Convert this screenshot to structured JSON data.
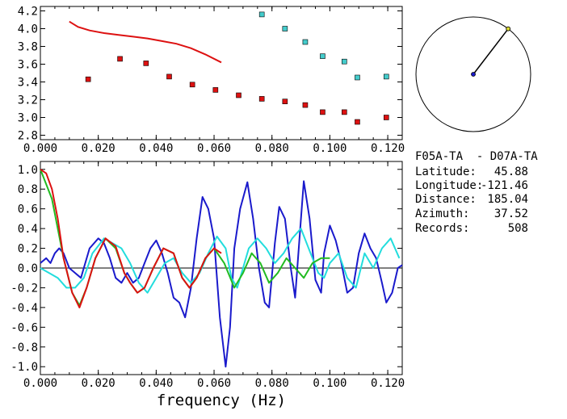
{
  "chart_data": [
    {
      "type": "scatter",
      "name": "dispersion",
      "xlim": [
        0.0,
        0.125
      ],
      "ylim": [
        2.75,
        4.25
      ],
      "x_ticks": [
        0.0,
        0.02,
        0.04,
        0.06,
        0.08,
        0.1,
        0.12
      ],
      "x_tick_labels": [
        "0.000",
        "0.020",
        "0.040",
        "0.060",
        "0.080",
        "0.100",
        "0.120"
      ],
      "y_ticks": [
        2.8,
        3.0,
        3.2,
        3.4,
        3.6,
        3.8,
        4.0,
        4.2
      ],
      "y_tick_labels": [
        "2.8",
        "3.0",
        "3.2",
        "3.4",
        "3.6",
        "3.8",
        "4.0",
        "4.2"
      ],
      "series": [
        {
          "kind": "line",
          "color": "#dd1111",
          "x": [
            0.01,
            0.013,
            0.017,
            0.022,
            0.027,
            0.032,
            0.037,
            0.042,
            0.047,
            0.052,
            0.057,
            0.0625
          ],
          "y": [
            4.08,
            4.02,
            3.98,
            3.95,
            3.93,
            3.91,
            3.89,
            3.86,
            3.83,
            3.78,
            3.71,
            3.62
          ]
        },
        {
          "kind": "markers",
          "color": "#dd1111",
          "x": [
            0.0165,
            0.0275,
            0.0365,
            0.0445,
            0.0525,
            0.0605,
            0.0685,
            0.0765,
            0.0845,
            0.0915,
            0.0975,
            0.105,
            0.1095,
            0.1195
          ],
          "y": [
            3.43,
            3.66,
            3.61,
            3.46,
            3.37,
            3.31,
            3.25,
            3.21,
            3.18,
            3.14,
            3.06,
            3.06,
            2.95,
            3.0
          ]
        },
        {
          "kind": "markers",
          "color": "#44cccc",
          "x": [
            0.0765,
            0.0845,
            0.0915,
            0.0975,
            0.105,
            0.1095,
            0.1195
          ],
          "y": [
            4.16,
            4.0,
            3.85,
            3.69,
            3.63,
            3.45,
            3.46
          ]
        }
      ]
    },
    {
      "type": "line",
      "name": "correlation",
      "xlim": [
        0.0,
        0.125
      ],
      "ylim": [
        -1.08,
        1.08
      ],
      "xlabel": "frequency (Hz)",
      "x_ticks": [
        0.0,
        0.02,
        0.04,
        0.06,
        0.08,
        0.1,
        0.12
      ],
      "x_tick_labels": [
        "0.000",
        "0.020",
        "0.040",
        "0.060",
        "0.080",
        "0.100",
        "0.120"
      ],
      "y_ticks": [
        1.0,
        0.8,
        0.6,
        0.4,
        0.2,
        0.0,
        -0.2,
        -0.4,
        -0.6,
        -0.8,
        -1.0
      ],
      "y_tick_labels": [
        "1.0",
        "0.8",
        "0.6",
        "0.4",
        "0.2",
        "0.0",
        "-0.2",
        "-0.4",
        "-0.6",
        "-0.8",
        "-1.0"
      ],
      "zero_line": true,
      "series": [
        {
          "color": "#1a1acc",
          "x": [
            0.0,
            0.002,
            0.0035,
            0.005,
            0.0065,
            0.008,
            0.01,
            0.012,
            0.014,
            0.017,
            0.02,
            0.022,
            0.024,
            0.026,
            0.028,
            0.03,
            0.032,
            0.034,
            0.036,
            0.038,
            0.04,
            0.042,
            0.044,
            0.046,
            0.048,
            0.05,
            0.052,
            0.054,
            0.056,
            0.058,
            0.06,
            0.062,
            0.064,
            0.0655,
            0.067,
            0.069,
            0.0715,
            0.0735,
            0.0755,
            0.0775,
            0.079,
            0.081,
            0.0825,
            0.0845,
            0.0865,
            0.088,
            0.0895,
            0.091,
            0.093,
            0.095,
            0.097,
            0.098,
            0.1,
            0.102,
            0.104,
            0.106,
            0.108,
            0.11,
            0.112,
            0.114,
            0.116,
            0.118,
            0.1195,
            0.1215,
            0.1235,
            0.125
          ],
          "y": [
            0.05,
            0.1,
            0.05,
            0.15,
            0.2,
            0.15,
            0.0,
            -0.05,
            -0.1,
            0.2,
            0.3,
            0.25,
            0.1,
            -0.1,
            -0.15,
            -0.05,
            -0.15,
            -0.1,
            0.05,
            0.2,
            0.28,
            0.15,
            -0.05,
            -0.3,
            -0.35,
            -0.5,
            -0.2,
            0.3,
            0.72,
            0.6,
            0.3,
            -0.5,
            -1.0,
            -0.6,
            0.2,
            0.6,
            0.87,
            0.5,
            0.0,
            -0.35,
            -0.4,
            0.25,
            0.62,
            0.5,
            0.0,
            -0.3,
            0.3,
            0.88,
            0.5,
            -0.12,
            -0.25,
            0.15,
            0.43,
            0.28,
            0.05,
            -0.25,
            -0.2,
            0.15,
            0.35,
            0.2,
            0.1,
            -0.15,
            -0.35,
            -0.25,
            0.0,
            0.03
          ]
        },
        {
          "color": "#22dddd",
          "x": [
            0.0,
            0.003,
            0.006,
            0.009,
            0.012,
            0.015,
            0.018,
            0.022,
            0.025,
            0.028,
            0.031,
            0.034,
            0.037,
            0.04,
            0.043,
            0.046,
            0.049,
            0.052,
            0.055,
            0.058,
            0.061,
            0.064,
            0.066,
            0.068,
            0.07,
            0.072,
            0.075,
            0.078,
            0.081,
            0.084,
            0.087,
            0.09,
            0.092,
            0.094,
            0.096,
            0.098,
            0.1,
            0.103,
            0.106,
            0.109,
            0.112,
            0.115,
            0.118,
            0.121,
            0.124
          ],
          "y": [
            0.0,
            -0.05,
            -0.1,
            -0.2,
            -0.2,
            -0.1,
            0.15,
            0.3,
            0.25,
            0.2,
            0.05,
            -0.15,
            -0.25,
            -0.1,
            0.05,
            0.1,
            -0.05,
            -0.15,
            -0.05,
            0.15,
            0.32,
            0.2,
            -0.1,
            -0.2,
            0.0,
            0.2,
            0.3,
            0.2,
            0.05,
            0.15,
            0.3,
            0.4,
            0.25,
            0.1,
            -0.05,
            -0.1,
            0.05,
            0.15,
            -0.1,
            -0.2,
            0.15,
            0.0,
            0.2,
            0.3,
            0.1
          ]
        },
        {
          "color": "#22bb22",
          "x": [
            0.0,
            0.004,
            0.008,
            0.011,
            0.0135,
            0.016,
            0.019,
            0.0225,
            0.026,
            0.029,
            0.031,
            0.0335,
            0.036,
            0.039,
            0.0425,
            0.046,
            0.049,
            0.0515,
            0.054,
            0.057,
            0.06,
            0.0635,
            0.067,
            0.07,
            0.073,
            0.076,
            0.079,
            0.082,
            0.085,
            0.088,
            0.091,
            0.094,
            0.097,
            0.1
          ],
          "y": [
            1.0,
            0.7,
            0.1,
            -0.25,
            -0.38,
            -0.2,
            0.1,
            0.3,
            0.2,
            -0.05,
            -0.15,
            -0.25,
            -0.2,
            0.0,
            0.2,
            0.15,
            -0.1,
            -0.2,
            -0.1,
            0.1,
            0.2,
            0.05,
            -0.2,
            -0.05,
            0.15,
            0.05,
            -0.15,
            -0.05,
            0.1,
            0.0,
            -0.1,
            0.05,
            0.1,
            0.1
          ]
        },
        {
          "color": "#dd1111",
          "x": [
            0.0,
            0.002,
            0.004,
            0.006,
            0.008,
            0.011,
            0.0135,
            0.016,
            0.019,
            0.0225,
            0.026,
            0.029,
            0.031,
            0.0335,
            0.036,
            0.039,
            0.0425,
            0.046,
            0.049,
            0.0515,
            0.054,
            0.057,
            0.06,
            0.0625
          ],
          "y": [
            1.0,
            0.96,
            0.8,
            0.5,
            0.1,
            -0.25,
            -0.4,
            -0.2,
            0.1,
            0.3,
            0.22,
            -0.05,
            -0.15,
            -0.25,
            -0.2,
            0.0,
            0.2,
            0.15,
            -0.1,
            -0.2,
            -0.1,
            0.1,
            0.2,
            0.15
          ]
        }
      ]
    }
  ],
  "compass": {
    "azimuth_deg": 37.52,
    "center_color": "#1a1acc",
    "tip_color": "#dddd33"
  },
  "info": {
    "title": "F05A-TA  - D07A-TA",
    "rows": [
      {
        "label": "Latitude:",
        "value": "45.88"
      },
      {
        "label": "Longitude:",
        "value": "-121.46"
      },
      {
        "label": "Distance:",
        "value": "185.04"
      },
      {
        "label": "Azimuth:",
        "value": "37.52"
      },
      {
        "label": "Records:",
        "value": "508"
      }
    ]
  }
}
